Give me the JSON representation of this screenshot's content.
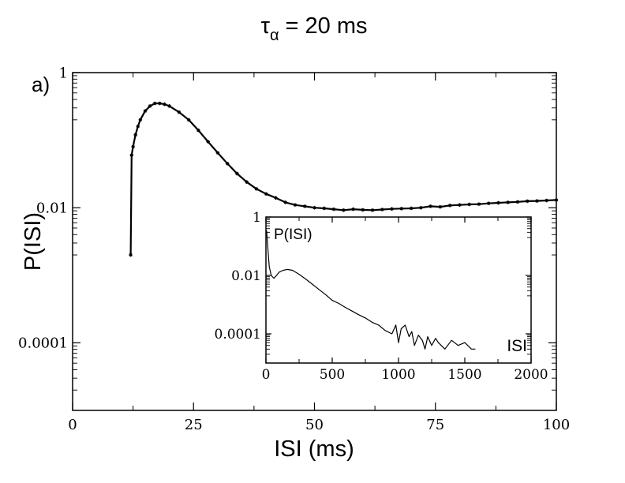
{
  "title": {
    "symbol": "τ",
    "subscript": "α",
    "rest": " = 20 ms"
  },
  "panel_label": "a)",
  "colors": {
    "line": "#000000",
    "background": "#ffffff"
  },
  "chart_data": [
    {
      "type": "line",
      "name": "main-plot",
      "scale_y": "log",
      "xlabel": "ISI (ms)",
      "ylabel": "P(ISI)",
      "xlim": [
        0,
        100
      ],
      "ylim": [
        1e-05,
        1
      ],
      "xticks": [
        0,
        25,
        50,
        75,
        100
      ],
      "xtick_labels": [
        "0",
        "25",
        "50",
        "75",
        "100"
      ],
      "yticks": [
        0.0001,
        0.01,
        1
      ],
      "ytick_labels": [
        "0.0001",
        "0.01",
        "1"
      ],
      "series": [
        {
          "name": "P(ISI)",
          "marker": "star",
          "x": [
            12,
            12.2,
            12.5,
            13,
            13.5,
            14,
            15,
            16,
            17,
            18,
            19,
            20,
            22,
            24,
            26,
            28,
            30,
            32,
            34,
            36,
            38,
            40,
            42,
            44,
            46,
            48,
            50,
            52,
            54,
            56,
            58,
            60,
            62,
            64,
            66,
            68,
            70,
            72,
            74,
            76,
            78,
            80,
            82,
            84,
            86,
            88,
            90,
            92,
            94,
            96,
            98,
            100
          ],
          "y": [
            0.002,
            0.06,
            0.08,
            0.12,
            0.16,
            0.2,
            0.27,
            0.32,
            0.35,
            0.35,
            0.34,
            0.32,
            0.26,
            0.2,
            0.14,
            0.095,
            0.065,
            0.045,
            0.032,
            0.024,
            0.019,
            0.016,
            0.014,
            0.012,
            0.011,
            0.0105,
            0.01,
            0.0098,
            0.0095,
            0.0092,
            0.0095,
            0.0093,
            0.0092,
            0.0094,
            0.0096,
            0.0097,
            0.0098,
            0.01,
            0.0105,
            0.0103,
            0.0108,
            0.011,
            0.0112,
            0.0113,
            0.0116,
            0.0118,
            0.012,
            0.0122,
            0.0125,
            0.0126,
            0.0128,
            0.013
          ]
        }
      ]
    },
    {
      "type": "line",
      "name": "inset-plot",
      "scale_y": "log",
      "xlabel": "ISI",
      "ylabel": "P(ISI)",
      "xlim": [
        0,
        2000
      ],
      "ylim": [
        1e-05,
        1
      ],
      "xticks": [
        0,
        500,
        1000,
        1500,
        2000
      ],
      "xtick_labels": [
        "0",
        "500",
        "1000",
        "1500",
        "2000"
      ],
      "yticks": [
        0.0001,
        0.01,
        1
      ],
      "ytick_labels": [
        "0.0001",
        "0.01",
        "1"
      ],
      "series": [
        {
          "name": "P(ISI)",
          "x": [
            5,
            15,
            25,
            40,
            60,
            80,
            100,
            130,
            160,
            200,
            250,
            300,
            350,
            400,
            450,
            500,
            550,
            600,
            650,
            700,
            750,
            800,
            850,
            900,
            950,
            980,
            1000,
            1020,
            1050,
            1080,
            1100,
            1120,
            1150,
            1180,
            1200,
            1220,
            1250,
            1280,
            1300,
            1350,
            1400,
            1450,
            1500,
            1550,
            1580
          ],
          "y": [
            0.35,
            0.08,
            0.02,
            0.01,
            0.008,
            0.01,
            0.013,
            0.015,
            0.016,
            0.015,
            0.011,
            0.0075,
            0.005,
            0.0033,
            0.0022,
            0.0014,
            0.0011,
            0.0008,
            0.0006,
            0.00045,
            0.00035,
            0.00025,
            0.0002,
            0.00013,
            0.0001,
            0.0002,
            5e-05,
            0.00015,
            0.0002,
            8e-05,
            0.00012,
            4e-05,
            9e-05,
            6e-05,
            3e-05,
            8e-05,
            4e-05,
            7e-05,
            5e-05,
            3e-05,
            6e-05,
            4e-05,
            5e-05,
            3e-05,
            3e-05
          ]
        }
      ]
    }
  ]
}
